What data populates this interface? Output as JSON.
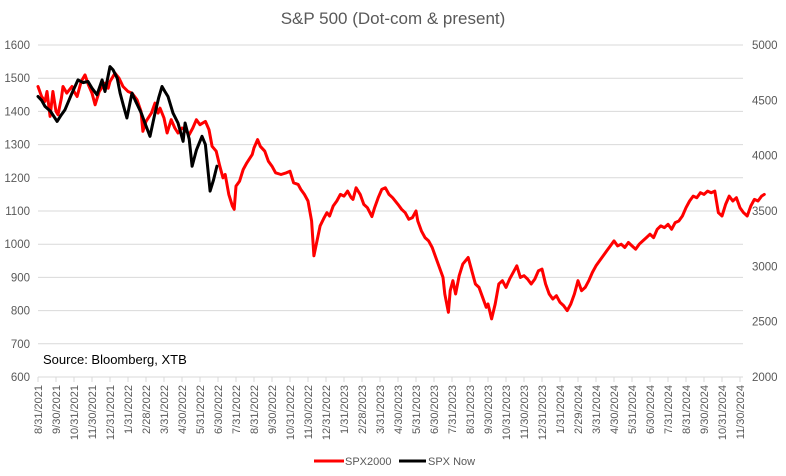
{
  "chart_data": {
    "type": "line",
    "title": "S&P 500 (Dot-com & present)",
    "annotation": "Source: Bloomberg, XTB",
    "xlabel": "",
    "ylabel": "",
    "grid": true,
    "legend_position": "bottom",
    "x_tick_labels": [
      "8/31/2021",
      "9/30/2021",
      "10/31/2021",
      "11/30/2021",
      "12/31/2021",
      "1/31/2022",
      "2/28/2022",
      "3/31/2022",
      "4/30/2022",
      "5/31/2022",
      "6/30/2022",
      "7/31/2022",
      "8/31/2022",
      "9/30/2022",
      "10/31/2022",
      "11/30/2022",
      "12/31/2022",
      "1/31/2023",
      "2/28/2023",
      "3/31/2023",
      "4/30/2023",
      "5/31/2023",
      "6/30/2023",
      "7/31/2023",
      "8/31/2023",
      "9/30/2023",
      "10/31/2023",
      "11/30/2023",
      "12/31/2023",
      "1/31/2024",
      "2/29/2024",
      "3/31/2024",
      "4/30/2024",
      "5/31/2024",
      "6/30/2024",
      "7/31/2024",
      "8/31/2024",
      "9/30/2024",
      "10/31/2024",
      "11/30/2024"
    ],
    "y_left": {
      "min": 600,
      "max": 1600,
      "step": 100,
      "ticks": [
        "600",
        "700",
        "800",
        "900",
        "1000",
        "1100",
        "1200",
        "1300",
        "1400",
        "1500",
        "1600"
      ]
    },
    "y_right": {
      "min": 2000,
      "max": 5000,
      "step": 500,
      "ticks": [
        "2000",
        "2500",
        "3000",
        "3500",
        "4000",
        "4500",
        "5000"
      ]
    },
    "x_unit": "months since first tick label",
    "series": [
      {
        "name": "SPX2000",
        "axis": "left",
        "color": "#ff0000",
        "points": [
          [
            0.0,
            1475
          ],
          [
            0.2,
            1445
          ],
          [
            0.39,
            1430
          ],
          [
            0.5,
            1460
          ],
          [
            0.67,
            1385
          ],
          [
            0.83,
            1460
          ],
          [
            1.0,
            1400
          ],
          [
            1.11,
            1390
          ],
          [
            1.3,
            1440
          ],
          [
            1.39,
            1475
          ],
          [
            1.6,
            1455
          ],
          [
            1.89,
            1475
          ],
          [
            2.0,
            1460
          ],
          [
            2.17,
            1445
          ],
          [
            2.4,
            1490
          ],
          [
            2.61,
            1510
          ],
          [
            2.8,
            1480
          ],
          [
            3.0,
            1455
          ],
          [
            3.17,
            1420
          ],
          [
            3.4,
            1460
          ],
          [
            3.72,
            1485
          ],
          [
            3.9,
            1470
          ],
          [
            4.0,
            1490
          ],
          [
            4.28,
            1515
          ],
          [
            4.5,
            1500
          ],
          [
            4.72,
            1475
          ],
          [
            5.0,
            1460
          ],
          [
            5.22,
            1455
          ],
          [
            5.5,
            1435
          ],
          [
            5.72,
            1400
          ],
          [
            5.83,
            1340
          ],
          [
            6.0,
            1370
          ],
          [
            6.3,
            1395
          ],
          [
            6.5,
            1425
          ],
          [
            6.67,
            1395
          ],
          [
            6.78,
            1410
          ],
          [
            7.0,
            1380
          ],
          [
            7.17,
            1335
          ],
          [
            7.4,
            1375
          ],
          [
            7.6,
            1350
          ],
          [
            7.78,
            1335
          ],
          [
            8.0,
            1350
          ],
          [
            8.17,
            1345
          ],
          [
            8.4,
            1330
          ],
          [
            8.6,
            1350
          ],
          [
            8.8,
            1375
          ],
          [
            9.0,
            1360
          ],
          [
            9.3,
            1370
          ],
          [
            9.5,
            1345
          ],
          [
            9.67,
            1295
          ],
          [
            9.9,
            1280
          ],
          [
            10.1,
            1235
          ],
          [
            10.28,
            1200
          ],
          [
            10.4,
            1210
          ],
          [
            10.6,
            1150
          ],
          [
            10.8,
            1115
          ],
          [
            10.9,
            1105
          ],
          [
            11.0,
            1175
          ],
          [
            11.2,
            1190
          ],
          [
            11.4,
            1225
          ],
          [
            11.6,
            1245
          ],
          [
            11.9,
            1270
          ],
          [
            12.0,
            1290
          ],
          [
            12.2,
            1315
          ],
          [
            12.35,
            1295
          ],
          [
            12.6,
            1280
          ],
          [
            12.8,
            1250
          ],
          [
            13.0,
            1235
          ],
          [
            13.2,
            1215
          ],
          [
            13.5,
            1210
          ],
          [
            13.8,
            1215
          ],
          [
            14.0,
            1220
          ],
          [
            14.2,
            1185
          ],
          [
            14.45,
            1180
          ],
          [
            14.6,
            1165
          ],
          [
            14.8,
            1150
          ],
          [
            15.0,
            1130
          ],
          [
            15.2,
            1070
          ],
          [
            15.33,
            965
          ],
          [
            15.5,
            1010
          ],
          [
            15.67,
            1055
          ],
          [
            15.9,
            1080
          ],
          [
            16.05,
            1095
          ],
          [
            16.2,
            1085
          ],
          [
            16.4,
            1115
          ],
          [
            16.6,
            1130
          ],
          [
            16.8,
            1150
          ],
          [
            17.0,
            1145
          ],
          [
            17.2,
            1160
          ],
          [
            17.4,
            1140
          ],
          [
            17.5,
            1135
          ],
          [
            17.67,
            1170
          ],
          [
            17.9,
            1150
          ],
          [
            18.1,
            1120
          ],
          [
            18.3,
            1110
          ],
          [
            18.55,
            1083
          ],
          [
            18.7,
            1110
          ],
          [
            18.9,
            1140
          ],
          [
            19.1,
            1165
          ],
          [
            19.3,
            1170
          ],
          [
            19.5,
            1150
          ],
          [
            19.7,
            1140
          ],
          [
            20.0,
            1120
          ],
          [
            20.2,
            1105
          ],
          [
            20.4,
            1095
          ],
          [
            20.6,
            1075
          ],
          [
            20.8,
            1080
          ],
          [
            21.0,
            1100
          ],
          [
            21.1,
            1070
          ],
          [
            21.3,
            1040
          ],
          [
            21.5,
            1020
          ],
          [
            21.7,
            1010
          ],
          [
            21.9,
            990
          ],
          [
            22.1,
            960
          ],
          [
            22.3,
            930
          ],
          [
            22.5,
            900
          ],
          [
            22.6,
            850
          ],
          [
            22.8,
            795
          ],
          [
            22.9,
            860
          ],
          [
            23.05,
            890
          ],
          [
            23.2,
            850
          ],
          [
            23.4,
            905
          ],
          [
            23.6,
            940
          ],
          [
            23.9,
            960
          ],
          [
            24.1,
            920
          ],
          [
            24.3,
            880
          ],
          [
            24.5,
            870
          ],
          [
            24.7,
            840
          ],
          [
            24.9,
            810
          ],
          [
            25.0,
            820
          ],
          [
            25.2,
            775
          ],
          [
            25.4,
            820
          ],
          [
            25.6,
            880
          ],
          [
            25.8,
            890
          ],
          [
            26.0,
            870
          ],
          [
            26.2,
            895
          ],
          [
            26.4,
            915
          ],
          [
            26.6,
            935
          ],
          [
            26.8,
            900
          ],
          [
            27.0,
            905
          ],
          [
            27.2,
            895
          ],
          [
            27.4,
            880
          ],
          [
            27.6,
            895
          ],
          [
            27.8,
            920
          ],
          [
            28.0,
            925
          ],
          [
            28.2,
            880
          ],
          [
            28.4,
            850
          ],
          [
            28.6,
            835
          ],
          [
            28.8,
            845
          ],
          [
            29.0,
            825
          ],
          [
            29.2,
            815
          ],
          [
            29.4,
            800
          ],
          [
            29.6,
            820
          ],
          [
            29.8,
            850
          ],
          [
            30.0,
            890
          ],
          [
            30.2,
            860
          ],
          [
            30.4,
            870
          ],
          [
            30.6,
            890
          ],
          [
            30.8,
            915
          ],
          [
            31.0,
            935
          ],
          [
            31.2,
            950
          ],
          [
            31.4,
            965
          ],
          [
            31.6,
            980
          ],
          [
            31.8,
            995
          ],
          [
            32.0,
            1010
          ],
          [
            32.2,
            995
          ],
          [
            32.4,
            1000
          ],
          [
            32.6,
            990
          ],
          [
            32.8,
            1005
          ],
          [
            33.0,
            995
          ],
          [
            33.2,
            985
          ],
          [
            33.4,
            1000
          ],
          [
            33.6,
            1010
          ],
          [
            33.8,
            1020
          ],
          [
            34.0,
            1030
          ],
          [
            34.2,
            1020
          ],
          [
            34.4,
            1045
          ],
          [
            34.6,
            1055
          ],
          [
            34.8,
            1050
          ],
          [
            35.0,
            1060
          ],
          [
            35.2,
            1045
          ],
          [
            35.4,
            1065
          ],
          [
            35.6,
            1070
          ],
          [
            35.8,
            1085
          ],
          [
            36.0,
            1110
          ],
          [
            36.2,
            1130
          ],
          [
            36.4,
            1145
          ],
          [
            36.6,
            1140
          ],
          [
            36.8,
            1155
          ],
          [
            37.0,
            1150
          ],
          [
            37.2,
            1160
          ],
          [
            37.4,
            1155
          ],
          [
            37.6,
            1160
          ],
          [
            37.8,
            1095
          ],
          [
            38.0,
            1085
          ],
          [
            38.2,
            1120
          ],
          [
            38.4,
            1145
          ],
          [
            38.6,
            1130
          ],
          [
            38.8,
            1140
          ],
          [
            39.0,
            1110
          ],
          [
            39.2,
            1095
          ],
          [
            39.4,
            1085
          ],
          [
            39.6,
            1115
          ],
          [
            39.8,
            1135
          ],
          [
            40.0,
            1130
          ],
          [
            40.2,
            1145
          ],
          [
            40.35,
            1150
          ]
        ]
      },
      {
        "name": "SPX Now",
        "axis": "right",
        "color": "#000000",
        "points": [
          [
            0.0,
            4535
          ],
          [
            0.2,
            4500
          ],
          [
            0.39,
            4445
          ],
          [
            0.7,
            4400
          ],
          [
            1.06,
            4310
          ],
          [
            1.3,
            4370
          ],
          [
            1.5,
            4415
          ],
          [
            1.89,
            4565
          ],
          [
            2.22,
            4685
          ],
          [
            2.5,
            4660
          ],
          [
            2.78,
            4670
          ],
          [
            3.0,
            4610
          ],
          [
            3.28,
            4550
          ],
          [
            3.56,
            4685
          ],
          [
            3.72,
            4580
          ],
          [
            4.0,
            4805
          ],
          [
            4.17,
            4775
          ],
          [
            4.4,
            4700
          ],
          [
            4.56,
            4565
          ],
          [
            4.75,
            4450
          ],
          [
            4.94,
            4340
          ],
          [
            5.22,
            4565
          ],
          [
            5.4,
            4500
          ],
          [
            5.56,
            4445
          ],
          [
            5.75,
            4380
          ],
          [
            5.94,
            4295
          ],
          [
            6.22,
            4175
          ],
          [
            6.5,
            4385
          ],
          [
            6.7,
            4520
          ],
          [
            6.89,
            4625
          ],
          [
            7.05,
            4580
          ],
          [
            7.22,
            4535
          ],
          [
            7.5,
            4385
          ],
          [
            7.78,
            4295
          ],
          [
            8.06,
            4130
          ],
          [
            8.17,
            4295
          ],
          [
            8.4,
            4150
          ],
          [
            8.56,
            3905
          ],
          [
            8.8,
            4050
          ],
          [
            9.11,
            4175
          ],
          [
            9.3,
            4100
          ],
          [
            9.56,
            3680
          ],
          [
            9.75,
            3780
          ],
          [
            9.94,
            3905
          ]
        ]
      }
    ]
  }
}
